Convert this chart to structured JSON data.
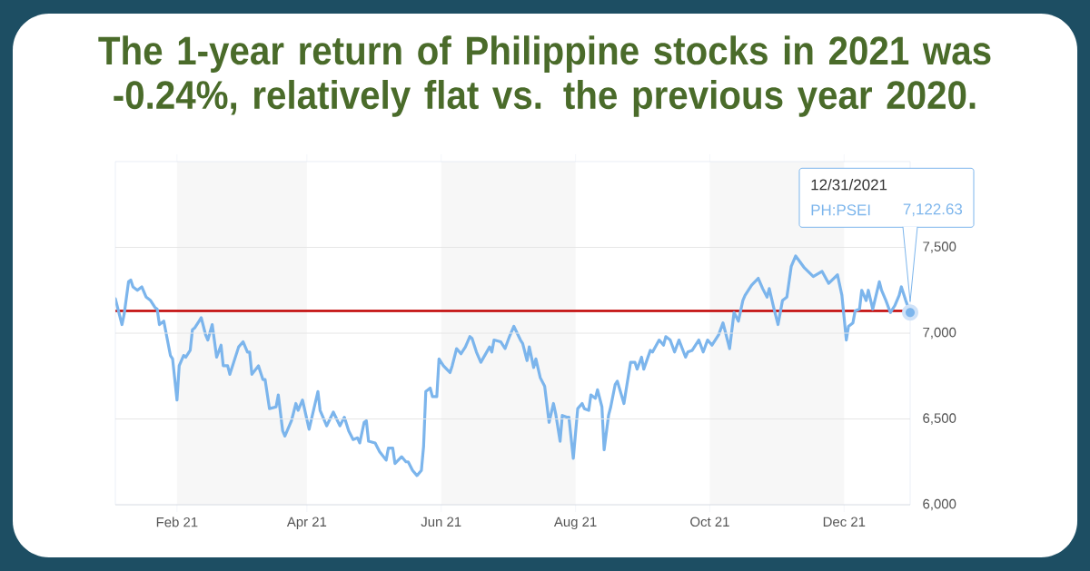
{
  "chart_data": {
    "type": "line",
    "title": "The 1-year return of Philippine stocks in 2021 was -0.24%, relatively flat vs. the previous year 2020.",
    "x": [
      "2021-01-04",
      "2021-01-07",
      "2021-01-08",
      "2021-01-10",
      "2021-01-11",
      "2021-01-12",
      "2021-01-14",
      "2021-01-16",
      "2021-01-18",
      "2021-01-20",
      "2021-01-22",
      "2021-01-23",
      "2021-01-24",
      "2021-01-26",
      "2021-01-29",
      "2021-01-30",
      "2021-02-01",
      "2021-02-02",
      "2021-02-04",
      "2021-02-05",
      "2021-02-07",
      "2021-02-08",
      "2021-02-09",
      "2021-02-11",
      "2021-02-12",
      "2021-02-14",
      "2021-02-15",
      "2021-02-17",
      "2021-02-19",
      "2021-02-21",
      "2021-02-22",
      "2021-02-24",
      "2021-02-25",
      "2021-03-01",
      "2021-03-03",
      "2021-03-05",
      "2021-03-06",
      "2021-03-07",
      "2021-03-10",
      "2021-03-12",
      "2021-03-13",
      "2021-03-15",
      "2021-03-18",
      "2021-03-19",
      "2021-03-21",
      "2021-03-22",
      "2021-03-25",
      "2021-03-27",
      "2021-03-28",
      "2021-03-30",
      "2021-04-02",
      "2021-04-06",
      "2021-04-07",
      "2021-04-10",
      "2021-04-13",
      "2021-04-16",
      "2021-04-18",
      "2021-04-20",
      "2021-04-22",
      "2021-04-24",
      "2021-04-25",
      "2021-04-27",
      "2021-04-28",
      "2021-04-29",
      "2021-05-02",
      "2021-05-04",
      "2021-05-07",
      "2021-05-08",
      "2021-05-10",
      "2021-05-11",
      "2021-05-14",
      "2021-05-16",
      "2021-05-17",
      "2021-05-19",
      "2021-05-21",
      "2021-05-23",
      "2021-05-24",
      "2021-05-25",
      "2021-05-27",
      "2021-05-28",
      "2021-05-30",
      "2021-05-31",
      "2021-06-02",
      "2021-06-05",
      "2021-06-06",
      "2021-06-08",
      "2021-06-10",
      "2021-06-12",
      "2021-06-14",
      "2021-06-15",
      "2021-06-17",
      "2021-06-19",
      "2021-06-23",
      "2021-06-24",
      "2021-06-25",
      "2021-06-28",
      "2021-06-30",
      "2021-07-02",
      "2021-07-04",
      "2021-07-07",
      "2021-07-08",
      "2021-07-10",
      "2021-07-11",
      "2021-07-13",
      "2021-07-14",
      "2021-07-16",
      "2021-07-18",
      "2021-07-20",
      "2021-07-22",
      "2021-07-23",
      "2021-07-25",
      "2021-07-26",
      "2021-07-28",
      "2021-07-29",
      "2021-07-31",
      "2021-08-02",
      "2021-08-04",
      "2021-08-05",
      "2021-08-07",
      "2021-08-08",
      "2021-08-10",
      "2021-08-11",
      "2021-08-13",
      "2021-08-14",
      "2021-08-16",
      "2021-08-17",
      "2021-08-19",
      "2021-08-20",
      "2021-08-23",
      "2021-08-24",
      "2021-08-26",
      "2021-08-28",
      "2021-08-29",
      "2021-08-31",
      "2021-09-01",
      "2021-09-04",
      "2021-09-05",
      "2021-09-08",
      "2021-09-10",
      "2021-09-11",
      "2021-09-13",
      "2021-09-15",
      "2021-09-17",
      "2021-09-20",
      "2021-09-21",
      "2021-09-23",
      "2021-09-26",
      "2021-09-28",
      "2021-09-30",
      "2021-10-02",
      "2021-10-05",
      "2021-10-07",
      "2021-10-10",
      "2021-10-12",
      "2021-10-14",
      "2021-10-16",
      "2021-10-17",
      "2021-10-20",
      "2021-10-23",
      "2021-10-25",
      "2021-10-27",
      "2021-10-28",
      "2021-10-30",
      "2021-11-01",
      "2021-11-03",
      "2021-11-05",
      "2021-11-07",
      "2021-11-09",
      "2021-11-13",
      "2021-11-17",
      "2021-11-21",
      "2021-11-24",
      "2021-11-28",
      "2021-11-30",
      "2021-12-02",
      "2021-12-03",
      "2021-12-05",
      "2021-12-06",
      "2021-12-08",
      "2021-12-09",
      "2021-12-11",
      "2021-12-12",
      "2021-12-14",
      "2021-12-17",
      "2021-12-18",
      "2021-12-20",
      "2021-12-22",
      "2021-12-24",
      "2021-12-26",
      "2021-12-27",
      "2021-12-29",
      "2021-12-31"
    ],
    "series": [
      {
        "name": "PH:PSEI",
        "color": "#7cb5ec",
        "values": [
          7200,
          7050,
          7110,
          7300,
          7310,
          7270,
          7250,
          7270,
          7210,
          7190,
          7150,
          7140,
          7050,
          7070,
          6870,
          6850,
          6610,
          6810,
          6870,
          6860,
          6900,
          7020,
          7030,
          7070,
          7090,
          6990,
          6960,
          7050,
          6860,
          6930,
          6810,
          6810,
          6760,
          6920,
          6950,
          6890,
          6890,
          6760,
          6810,
          6730,
          6730,
          6560,
          6570,
          6640,
          6430,
          6400,
          6490,
          6590,
          6550,
          6610,
          6440,
          6660,
          6550,
          6460,
          6540,
          6460,
          6510,
          6430,
          6380,
          6390,
          6360,
          6480,
          6490,
          6370,
          6360,
          6310,
          6260,
          6330,
          6330,
          6240,
          6280,
          6250,
          6250,
          6200,
          6170,
          6200,
          6340,
          6660,
          6680,
          6630,
          6630,
          6850,
          6810,
          6770,
          6810,
          6910,
          6880,
          6920,
          6980,
          6970,
          6890,
          6830,
          6920,
          6890,
          6960,
          6950,
          6910,
          6980,
          7040,
          6960,
          6940,
          6840,
          6920,
          6800,
          6850,
          6740,
          6690,
          6480,
          6590,
          6530,
          6370,
          6520,
          6510,
          6510,
          6270,
          6560,
          6590,
          6560,
          6550,
          6640,
          6620,
          6670,
          6570,
          6320,
          6520,
          6570,
          6700,
          6720,
          6590,
          6670,
          6830,
          6830,
          6790,
          6860,
          6790,
          6900,
          6890,
          6960,
          6930,
          6980,
          6960,
          6890,
          6960,
          6860,
          6890,
          6900,
          6960,
          6890,
          6960,
          6930,
          6990,
          7060,
          6910,
          7120,
          7070,
          7190,
          7220,
          7280,
          7320,
          7260,
          7210,
          7260,
          7150,
          7050,
          7190,
          7210,
          7390,
          7450,
          7380,
          7330,
          7360,
          7290,
          7340,
          7220,
          6960,
          7040,
          7060,
          7130,
          7140,
          7250,
          7190,
          7250,
          7140,
          7300,
          7250,
          7190,
          7120,
          7160,
          7220,
          7270,
          7190,
          7120
        ]
      }
    ],
    "xlim": [
      "2021-01-04",
      "2021-12-31"
    ],
    "ylim": [
      6000,
      8000
    ],
    "xticks": [
      {
        "value": "2021-02-01",
        "label": "Feb 21"
      },
      {
        "value": "2021-04-01",
        "label": "Apr 21"
      },
      {
        "value": "2021-06-01",
        "label": "Jun 21"
      },
      {
        "value": "2021-08-01",
        "label": "Aug 21"
      },
      {
        "value": "2021-10-01",
        "label": "Oct 21"
      },
      {
        "value": "2021-12-01",
        "label": "Dec 21"
      }
    ],
    "yticks": [
      {
        "value": 6000,
        "label": "6,000"
      },
      {
        "value": 6500,
        "label": "6,500"
      },
      {
        "value": 7000,
        "label": "7,000"
      },
      {
        "value": 7500,
        "label": "7,500"
      }
    ],
    "grid": "y",
    "bands": [
      {
        "axis": "x",
        "from": "2021-02-01",
        "to": "2021-04-01",
        "color": "#f7f7f7"
      },
      {
        "axis": "x",
        "from": "2021-06-01",
        "to": "2021-08-01",
        "color": "#f7f7f7"
      },
      {
        "axis": "x",
        "from": "2021-10-01",
        "to": "2021-12-01",
        "color": "#f7f7f7"
      }
    ],
    "ref_lines": [
      {
        "axis": "y",
        "value": 7130,
        "color": "#c00000"
      }
    ],
    "annotations": [
      "12/31/2021",
      "7,122.63"
    ]
  }
}
